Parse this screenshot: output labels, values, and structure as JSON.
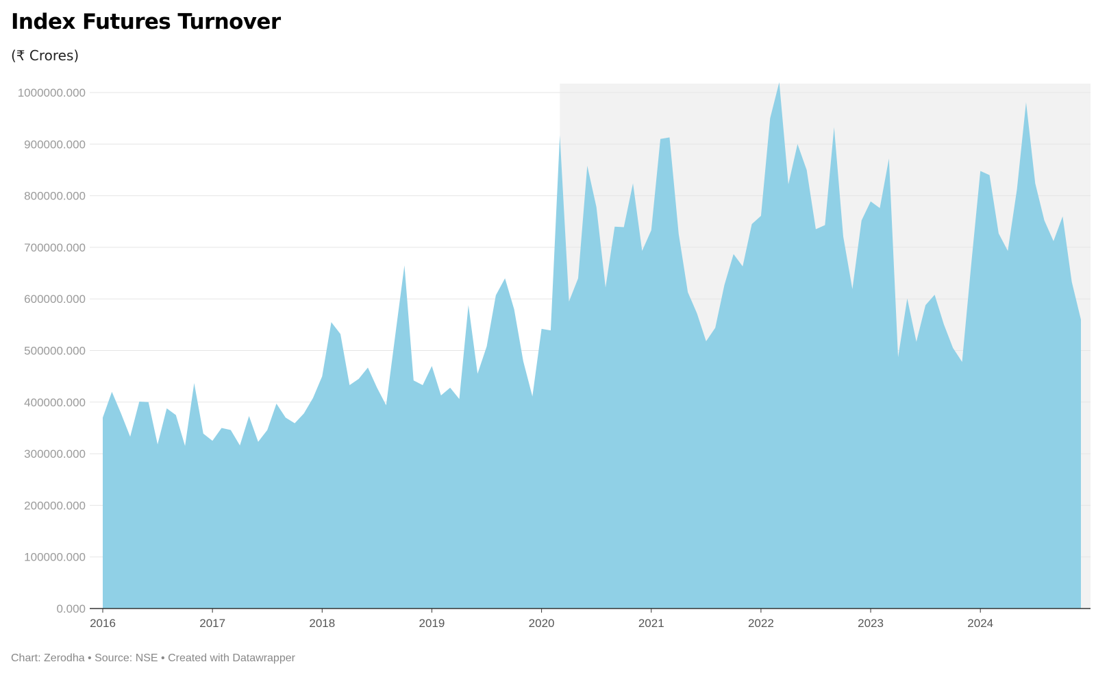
{
  "header": {
    "title": "Index Futures Turnover",
    "subtitle": "(₹ Crores)"
  },
  "footer": {
    "credit": "Chart: Zerodha • Source: NSE • Created with Datawrapper"
  },
  "colors": {
    "area": "#8ecfe6",
    "highlight_band": "#f2f2f2",
    "gridline": "#e5e5e5",
    "axis": "#333333"
  },
  "chart_data": {
    "type": "area",
    "title": "Index Futures Turnover",
    "subtitle": "(₹ Crores)",
    "xlabel": "",
    "ylabel": "",
    "x_format": "YYYY-MM",
    "ylim": [
      0,
      1000000
    ],
    "yticks": [
      "0.000",
      "100000.000",
      "200000.000",
      "300000.000",
      "400000.000",
      "500000.000",
      "600000.000",
      "700000.000",
      "800000.000",
      "900000.000",
      "1000000.000"
    ],
    "xticks": [
      "2016",
      "2017",
      "2018",
      "2019",
      "2020",
      "2021",
      "2022",
      "2023",
      "2024"
    ],
    "grid": true,
    "legend": "none",
    "shaded_region": {
      "start": "2020-03",
      "end": "2024-12"
    },
    "x": [
      "2016-01",
      "2016-02",
      "2016-03",
      "2016-04",
      "2016-05",
      "2016-06",
      "2016-07",
      "2016-08",
      "2016-09",
      "2016-10",
      "2016-11",
      "2016-12",
      "2017-01",
      "2017-02",
      "2017-03",
      "2017-04",
      "2017-05",
      "2017-06",
      "2017-07",
      "2017-08",
      "2017-09",
      "2017-10",
      "2017-11",
      "2017-12",
      "2018-01",
      "2018-02",
      "2018-03",
      "2018-04",
      "2018-05",
      "2018-06",
      "2018-07",
      "2018-08",
      "2018-09",
      "2018-10",
      "2018-11",
      "2018-12",
      "2019-01",
      "2019-02",
      "2019-03",
      "2019-04",
      "2019-05",
      "2019-06",
      "2019-07",
      "2019-08",
      "2019-09",
      "2019-10",
      "2019-11",
      "2019-12",
      "2020-01",
      "2020-02",
      "2020-03",
      "2020-04",
      "2020-05",
      "2020-06",
      "2020-07",
      "2020-08",
      "2020-09",
      "2020-10",
      "2020-11",
      "2020-12",
      "2021-01",
      "2021-02",
      "2021-03",
      "2021-04",
      "2021-05",
      "2021-06",
      "2021-07",
      "2021-08",
      "2021-09",
      "2021-10",
      "2021-11",
      "2021-12",
      "2022-01",
      "2022-02",
      "2022-03",
      "2022-04",
      "2022-05",
      "2022-06",
      "2022-07",
      "2022-08",
      "2022-09",
      "2022-10",
      "2022-11",
      "2022-12",
      "2023-01",
      "2023-02",
      "2023-03",
      "2023-04",
      "2023-05",
      "2023-06",
      "2023-07",
      "2023-08",
      "2023-09",
      "2023-10",
      "2023-11",
      "2023-12",
      "2024-01",
      "2024-02",
      "2024-03",
      "2024-04",
      "2024-05",
      "2024-06",
      "2024-07",
      "2024-08",
      "2024-09",
      "2024-10",
      "2024-11",
      "2024-12"
    ],
    "values": [
      370000,
      420000,
      378000,
      333000,
      401000,
      400000,
      318000,
      388000,
      375000,
      315000,
      437000,
      339000,
      325000,
      350000,
      346000,
      316000,
      373000,
      323000,
      346000,
      397000,
      370000,
      359000,
      378000,
      408000,
      450000,
      555000,
      532000,
      433000,
      445000,
      467000,
      428000,
      394000,
      530000,
      665000,
      442000,
      433000,
      470000,
      413000,
      428000,
      406000,
      588000,
      455000,
      508000,
      607000,
      640000,
      580000,
      479000,
      411000,
      542000,
      539000,
      917000,
      595000,
      640000,
      858000,
      778000,
      622000,
      740000,
      739000,
      824000,
      693000,
      733000,
      910000,
      913000,
      726000,
      613000,
      572000,
      518000,
      544000,
      627000,
      687000,
      663000,
      745000,
      761000,
      950000,
      1020000,
      822000,
      900000,
      850000,
      735000,
      743000,
      933000,
      721000,
      619000,
      752000,
      789000,
      776000,
      872000,
      487000,
      601000,
      517000,
      588000,
      608000,
      551000,
      505000,
      478000,
      667000,
      848000,
      840000,
      727000,
      693000,
      812000,
      981000,
      824000,
      752000,
      712000,
      760000,
      633000,
      560000
    ]
  }
}
